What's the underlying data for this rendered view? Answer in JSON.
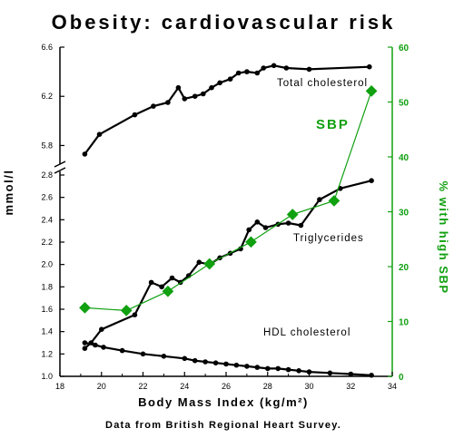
{
  "chart_data": {
    "type": "line",
    "title": "Obesity:  cardiovascular risk",
    "xlabel": "Body Mass Index (kg/m²)",
    "ylabel_left": "mmol/l",
    "ylabel_right": "% with high SBP",
    "footer": "Data from British Regional Heart Survey.",
    "x_axis": {
      "min": 18,
      "max": 34,
      "ticks": [
        "18",
        "20",
        "22",
        "24",
        "26",
        "28",
        "30",
        "32",
        "34"
      ]
    },
    "y_left_upper": {
      "min": 5.7,
      "max": 6.6,
      "ticks": [
        "5.8",
        "6.2",
        "6.6"
      ]
    },
    "y_left_lower": {
      "min": 1.0,
      "max": 2.8,
      "ticks": [
        "1.0",
        "1.2",
        "1.4",
        "1.6",
        "1.8",
        "2.0",
        "2.2",
        "2.4",
        "2.6",
        "2.8"
      ]
    },
    "y_right": {
      "min": 0,
      "max": 60,
      "ticks": [
        "0",
        "10",
        "20",
        "30",
        "40",
        "50",
        "60"
      ]
    },
    "series": [
      {
        "name": "Total cholesterol",
        "axis": "left-upper",
        "color": "#000000",
        "x": [
          19.2,
          19.9,
          21.6,
          22.5,
          23.2,
          23.7,
          24.0,
          24.5,
          24.9,
          25.3,
          25.7,
          26.2,
          26.6,
          27.0,
          27.5,
          27.8,
          28.3,
          28.9,
          30.0,
          32.9
        ],
        "y": [
          5.73,
          5.89,
          6.05,
          6.12,
          6.15,
          6.27,
          6.18,
          6.2,
          6.22,
          6.27,
          6.31,
          6.34,
          6.39,
          6.4,
          6.39,
          6.43,
          6.45,
          6.43,
          6.42,
          6.44
        ]
      },
      {
        "name": "Triglycerides",
        "axis": "left-lower",
        "color": "#000000",
        "x": [
          19.2,
          19.5,
          20.0,
          21.6,
          22.4,
          22.9,
          23.4,
          23.8,
          24.2,
          24.7,
          25.2,
          25.7,
          26.2,
          26.7,
          27.1,
          27.5,
          27.9,
          28.5,
          29.0,
          29.6,
          30.5,
          31.5,
          33.0
        ],
        "y": [
          1.25,
          1.3,
          1.42,
          1.55,
          1.84,
          1.8,
          1.88,
          1.84,
          1.9,
          2.02,
          2.0,
          2.06,
          2.1,
          2.14,
          2.31,
          2.38,
          2.33,
          2.36,
          2.37,
          2.35,
          2.58,
          2.68,
          2.75
        ]
      },
      {
        "name": "HDL cholesterol",
        "axis": "left-lower",
        "color": "#000000",
        "x": [
          19.2,
          19.7,
          20.1,
          21.0,
          22.0,
          23.0,
          24.0,
          24.5,
          25.0,
          25.5,
          26.0,
          26.5,
          27.0,
          27.5,
          28.0,
          28.5,
          29.0,
          29.5,
          30.0,
          31.0,
          32.0,
          33.0
        ],
        "y": [
          1.3,
          1.28,
          1.26,
          1.23,
          1.2,
          1.18,
          1.16,
          1.14,
          1.13,
          1.12,
          1.11,
          1.1,
          1.09,
          1.08,
          1.07,
          1.07,
          1.06,
          1.05,
          1.04,
          1.03,
          1.02,
          1.01
        ]
      },
      {
        "name": "SBP",
        "axis": "right",
        "color": "#10a010",
        "x": [
          19.2,
          21.2,
          23.2,
          25.2,
          27.2,
          29.2,
          31.2,
          33.0
        ],
        "y": [
          12.5,
          12.0,
          15.5,
          20.5,
          24.5,
          29.5,
          32.0,
          52.0
        ]
      }
    ],
    "labels": {
      "total_cholesterol": "Total cholesterol",
      "triglycerides": "Triglycerides",
      "hdl": "HDL cholesterol",
      "sbp": "SBP"
    },
    "colors": {
      "axis": "#000000",
      "sbp": "#10a010"
    }
  }
}
